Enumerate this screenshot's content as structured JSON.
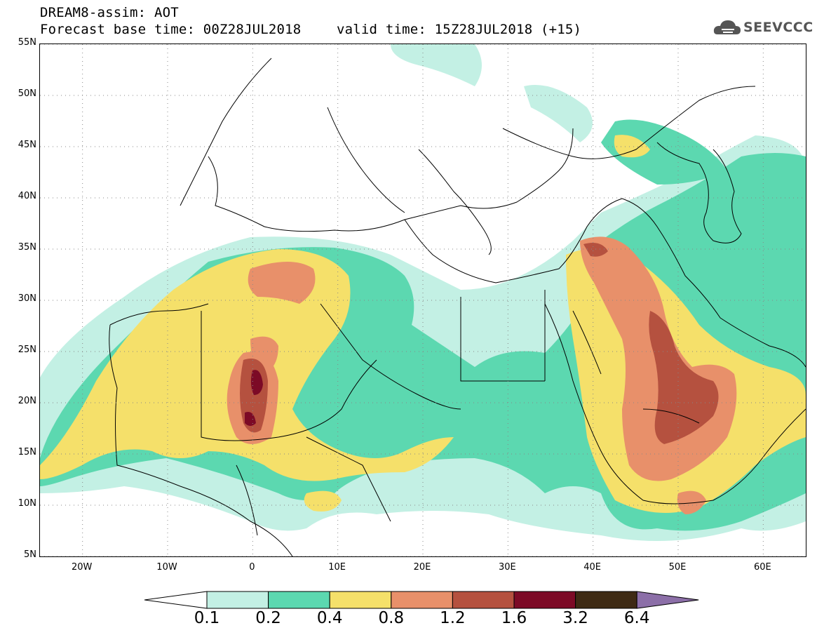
{
  "title": {
    "line1": "DREAM8-assim: AOT",
    "line2": "Forecast base time: 00Z28JUL2018",
    "line2b": "valid time: 15Z28JUL2018 (+15)"
  },
  "logo": {
    "text": "SEEVCCC",
    "icon": "cloud-icon"
  },
  "map": {
    "lon_range": [
      -25,
      65
    ],
    "lat_range": [
      5,
      55
    ],
    "lat_ticks": [
      {
        "value": 55,
        "label": "55N"
      },
      {
        "value": 50,
        "label": "50N"
      },
      {
        "value": 45,
        "label": "45N"
      },
      {
        "value": 40,
        "label": "40N"
      },
      {
        "value": 35,
        "label": "35N"
      },
      {
        "value": 30,
        "label": "30N"
      },
      {
        "value": 25,
        "label": "25N"
      },
      {
        "value": 20,
        "label": "20N"
      },
      {
        "value": 15,
        "label": "15N"
      },
      {
        "value": 10,
        "label": "10N"
      },
      {
        "value": 5,
        "label": "5N"
      }
    ],
    "lon_ticks": [
      {
        "value": -20,
        "label": "20W"
      },
      {
        "value": -10,
        "label": "10W"
      },
      {
        "value": 0,
        "label": "0"
      },
      {
        "value": 10,
        "label": "10E"
      },
      {
        "value": 20,
        "label": "20E"
      },
      {
        "value": 30,
        "label": "30E"
      },
      {
        "value": 40,
        "label": "40E"
      },
      {
        "value": 50,
        "label": "50E"
      },
      {
        "value": 60,
        "label": "60E"
      }
    ],
    "grid": "dotted"
  },
  "colorbar": {
    "labels": [
      "0.1",
      "0.2",
      "0.4",
      "0.8",
      "1.2",
      "1.6",
      "3.2",
      "6.4"
    ],
    "colors": [
      "#c3f0e4",
      "#5cd8b0",
      "#f5e06a",
      "#e8906a",
      "#b5513f",
      "#7c0a26",
      "#3e2a14",
      "#8c6fa8"
    ],
    "low_arrow_color": "#ffffff"
  }
}
